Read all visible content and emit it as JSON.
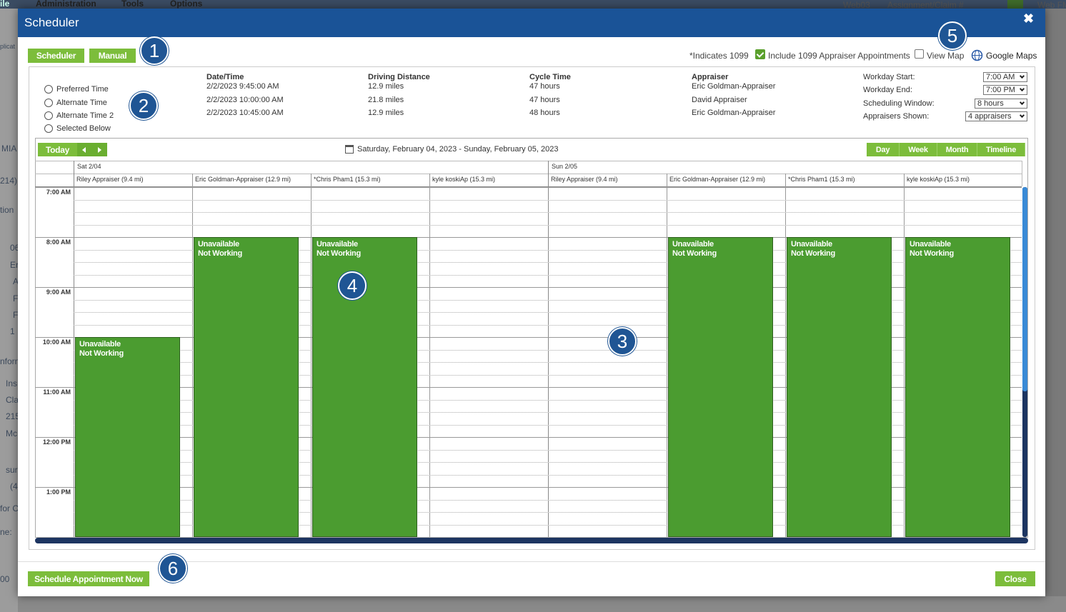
{
  "background": {
    "menu": [
      "ile",
      "Administration",
      "Tools",
      "Options"
    ],
    "right": [
      "Web03",
      "Assignment/Claim #",
      "Web FM"
    ],
    "fragments": [
      "plicat",
      "MIA",
      "214)",
      "tion",
      "06",
      "Er",
      "A",
      "F",
      "F",
      "1",
      "nforn",
      "Ins",
      "Cla",
      "215",
      "Mc",
      "sur",
      "(4",
      "for C",
      "ne:",
      "00"
    ]
  },
  "modal": {
    "title": "Scheduler",
    "close": "✖"
  },
  "tabs": [
    "Scheduler",
    "Manual"
  ],
  "callouts": [
    "1",
    "2",
    "3",
    "4",
    "5",
    "6"
  ],
  "top_options": {
    "indicates": "*Indicates 1099",
    "include_1099": "Include 1099 Appraiser Appointments",
    "view_map": "View Map",
    "google_maps": "Google Maps"
  },
  "time_options": [
    "Preferred Time",
    "Alternate Time",
    "Alternate Time 2",
    "Selected Below"
  ],
  "suggestions": {
    "headers": [
      "Date/Time",
      "Driving Distance",
      "Cycle Time",
      "Appraiser"
    ],
    "rows": [
      [
        "2/2/2023 9:45:00 AM",
        "12.9 miles",
        "47 hours",
        "Eric Goldman-Appraiser"
      ],
      [
        "2/2/2023 10:00:00 AM",
        "21.8 miles",
        "47 hours",
        "David Appraiser"
      ],
      [
        "2/2/2023 10:45:00 AM",
        "12.9 miles",
        "48 hours",
        "Eric Goldman-Appraiser"
      ]
    ]
  },
  "settings": [
    {
      "label": "Workday Start:",
      "value": "7:00 AM"
    },
    {
      "label": "Workday End:",
      "value": "7:00 PM"
    },
    {
      "label": "Scheduling Window:",
      "value": "8 hours"
    },
    {
      "label": "Appraisers Shown:",
      "value": "4 appraisers"
    }
  ],
  "calendar": {
    "today": "Today",
    "range": "Saturday, February 04, 2023 - Sunday, February 05, 2023",
    "views": [
      "Day",
      "Week",
      "Month",
      "Timeline"
    ],
    "days": [
      "Sat 2/04",
      "Sun 2/05"
    ],
    "resources": [
      "Riley Appraiser (9.4 mi)",
      "Eric Goldman-Appraiser (12.9 mi)",
      "*Chris Pham1 (15.3 mi)",
      "kyle koskiAp (15.3 mi)",
      "Riley Appraiser (9.4 mi)",
      "Eric Goldman-Appraiser (12.9 mi)",
      "*Chris Pham1 (15.3 mi)",
      "kyle koskiAp (15.3 mi)"
    ],
    "times": [
      "7:00 AM",
      "8:00 AM",
      "9:00 AM",
      "10:00 AM",
      "11:00 AM",
      "12:00 PM",
      "1:00 PM"
    ],
    "events": [
      {
        "title": "Unavailable",
        "subtitle": "Not Working"
      },
      {
        "title": "Unavailable",
        "subtitle": "Not Working"
      },
      {
        "title": "Unavailable",
        "subtitle": "Not Working"
      },
      {
        "title": "Unavailable",
        "subtitle": "Not Working"
      },
      {
        "title": "Unavailable",
        "subtitle": "Not Working"
      },
      {
        "title": "Unavailable",
        "subtitle": "Not Working"
      }
    ]
  },
  "footer": {
    "schedule": "Schedule Appointment Now",
    "close": "Close"
  }
}
